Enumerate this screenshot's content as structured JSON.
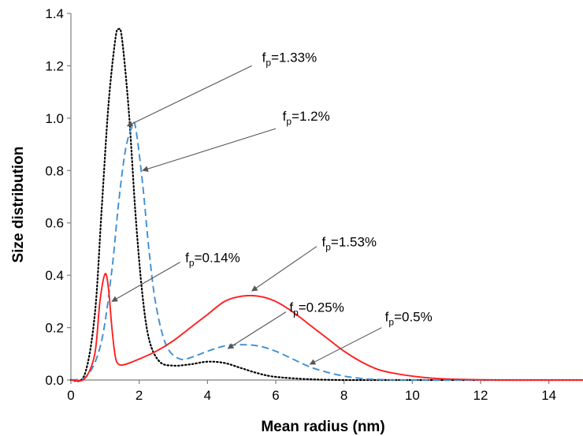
{
  "chart_data": {
    "type": "line",
    "xlabel": "Mean  radius (nm)",
    "ylabel": "Size distribution",
    "xlim": [
      0,
      15
    ],
    "ylim": [
      0,
      1.4
    ],
    "x_ticks": [
      "0",
      "2",
      "4",
      "6",
      "8",
      "10",
      "12",
      "14"
    ],
    "y_ticks": [
      "0.0",
      "0.2",
      "0.4",
      "0.6",
      "0.8",
      "1.0",
      "1.2",
      "1.4"
    ],
    "grid": false,
    "series": [
      {
        "style": "dotted",
        "color": "#000000",
        "x": [
          0,
          0.4,
          0.7,
          0.9,
          1.1,
          1.3,
          1.4,
          1.5,
          1.7,
          1.9,
          2.1,
          2.3,
          2.6,
          3.0,
          3.5,
          4.0,
          4.5,
          5.0,
          5.5,
          6.0,
          7.0,
          8.0,
          9.0,
          10.0,
          15.0
        ],
        "y": [
          0.0,
          0.02,
          0.25,
          0.65,
          1.05,
          1.3,
          1.34,
          1.3,
          1.02,
          0.62,
          0.32,
          0.15,
          0.07,
          0.055,
          0.06,
          0.07,
          0.065,
          0.045,
          0.025,
          0.012,
          0.003,
          0.0,
          0.0,
          0.0,
          0.0
        ]
      },
      {
        "style": "dashed",
        "color": "#3f8fd2",
        "x": [
          0,
          0.5,
          0.9,
          1.2,
          1.4,
          1.6,
          1.8,
          1.9,
          2.1,
          2.3,
          2.5,
          2.8,
          3.2,
          3.6,
          4.0,
          4.5,
          5.0,
          5.5,
          6.0,
          6.5,
          7.0,
          7.5,
          8.0,
          8.5,
          9.0,
          10.0,
          11.0,
          15.0
        ],
        "y": [
          0.0,
          0.02,
          0.15,
          0.42,
          0.68,
          0.88,
          0.97,
          0.96,
          0.75,
          0.48,
          0.28,
          0.13,
          0.08,
          0.09,
          0.11,
          0.13,
          0.135,
          0.13,
          0.11,
          0.08,
          0.05,
          0.03,
          0.015,
          0.006,
          0.002,
          0.0,
          0.0,
          0.0
        ]
      },
      {
        "style": "solid",
        "color": "#ff2020",
        "x": [
          0,
          0.4,
          0.7,
          0.85,
          1.0,
          1.1,
          1.2,
          1.3,
          1.4,
          1.6,
          2.0,
          2.5,
          3.0,
          3.5,
          4.0,
          4.5,
          5.0,
          5.5,
          6.0,
          6.5,
          7.0,
          7.5,
          8.0,
          8.5,
          9.0,
          9.5,
          10.0,
          10.5,
          11.0,
          12.0,
          13.0,
          15.0
        ],
        "y": [
          0.0,
          0.005,
          0.1,
          0.3,
          0.405,
          0.35,
          0.2,
          0.09,
          0.06,
          0.06,
          0.08,
          0.11,
          0.15,
          0.2,
          0.25,
          0.3,
          0.32,
          0.32,
          0.3,
          0.26,
          0.21,
          0.16,
          0.11,
          0.07,
          0.04,
          0.025,
          0.015,
          0.008,
          0.004,
          0.001,
          0.0,
          0.0
        ]
      }
    ],
    "annotations": [
      {
        "base": "f",
        "sub": "p",
        "rest": "=1.33%",
        "text_x": 5.6,
        "text_y": 1.215,
        "arrow_from": [
          5.3,
          1.2
        ],
        "arrow_to": [
          1.65,
          0.97
        ]
      },
      {
        "base": "f",
        "sub": "p",
        "rest": "=1.2%",
        "text_x": 6.2,
        "text_y": 0.99,
        "arrow_from": [
          6.0,
          0.96
        ],
        "arrow_to": [
          2.1,
          0.8
        ]
      },
      {
        "base": "f",
        "sub": "p",
        "rest": "=0.14%",
        "text_x": 3.35,
        "text_y": 0.45,
        "arrow_from": [
          3.2,
          0.45
        ],
        "arrow_to": [
          1.2,
          0.3
        ]
      },
      {
        "base": "f",
        "sub": "p",
        "rest": "=1.53%",
        "text_x": 7.35,
        "text_y": 0.51,
        "arrow_from": [
          7.2,
          0.51
        ],
        "arrow_to": [
          5.3,
          0.34
        ]
      },
      {
        "base": "f",
        "sub": "p",
        "rest": "=0.25%",
        "text_x": 6.4,
        "text_y": 0.26,
        "arrow_from": [
          6.3,
          0.26
        ],
        "arrow_to": [
          4.6,
          0.12
        ]
      },
      {
        "base": "f",
        "sub": "p",
        "rest": "=0.5%",
        "text_x": 9.2,
        "text_y": 0.225,
        "arrow_from": [
          9.1,
          0.2
        ],
        "arrow_to": [
          7.0,
          0.06
        ]
      }
    ]
  }
}
